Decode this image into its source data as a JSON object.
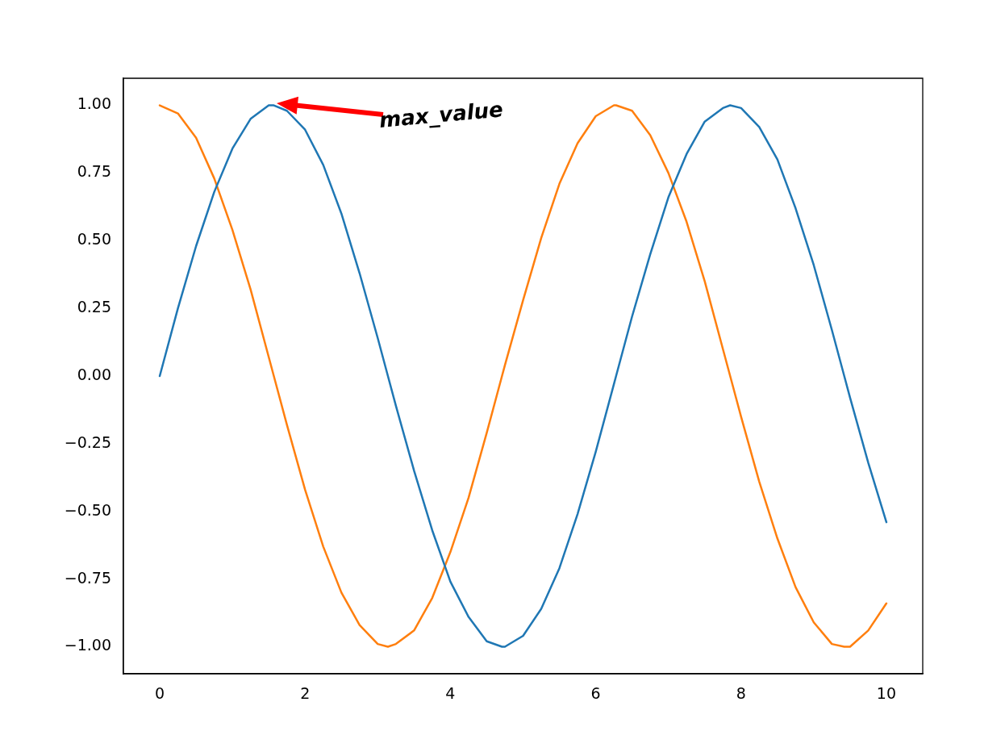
{
  "chart_data": {
    "type": "line",
    "x": [
      0,
      0.25,
      0.5,
      0.75,
      1,
      1.25,
      1.5,
      1.57,
      1.75,
      2,
      2.25,
      2.5,
      2.75,
      3,
      3.14,
      3.25,
      3.5,
      3.75,
      4,
      4.25,
      4.5,
      4.71,
      4.75,
      5,
      5.25,
      5.5,
      5.75,
      6,
      6.25,
      6.28,
      6.5,
      6.75,
      7,
      7.25,
      7.5,
      7.75,
      7.85,
      8,
      8.25,
      8.5,
      8.75,
      9,
      9.25,
      9.42,
      9.5,
      9.75,
      10
    ],
    "series": [
      {
        "color": "#1f77b4",
        "values": [
          0,
          0.25,
          0.48,
          0.68,
          0.84,
          0.95,
          1.0,
          1.0,
          0.98,
          0.91,
          0.78,
          0.6,
          0.38,
          0.14,
          0.0,
          -0.11,
          -0.35,
          -0.57,
          -0.76,
          -0.89,
          -0.98,
          -1.0,
          -1.0,
          -0.96,
          -0.86,
          -0.71,
          -0.51,
          -0.28,
          -0.03,
          0.0,
          0.22,
          0.45,
          0.66,
          0.82,
          0.94,
          0.99,
          1.0,
          0.99,
          0.92,
          0.8,
          0.62,
          0.41,
          0.17,
          0.0,
          -0.08,
          -0.32,
          -0.54
        ]
      },
      {
        "color": "#ff7f0e",
        "values": [
          1,
          0.97,
          0.88,
          0.73,
          0.54,
          0.32,
          0.07,
          0.0,
          -0.18,
          -0.42,
          -0.63,
          -0.8,
          -0.92,
          -0.99,
          -1.0,
          -0.99,
          -0.94,
          -0.82,
          -0.65,
          -0.45,
          -0.21,
          0.0,
          0.04,
          0.28,
          0.51,
          0.71,
          0.86,
          0.96,
          1.0,
          1.0,
          0.98,
          0.89,
          0.75,
          0.57,
          0.35,
          0.1,
          0.0,
          -0.15,
          -0.39,
          -0.6,
          -0.78,
          -0.91,
          -0.99,
          -1.0,
          -1.0,
          -0.94,
          -0.84
        ]
      }
    ],
    "xlim": [
      -0.5,
      10.5
    ],
    "xticks": [
      0,
      2,
      4,
      6,
      8,
      10
    ],
    "ylim": [
      -1.1,
      1.1
    ],
    "yticks": [
      {
        "value": -1,
        "label": "−1.00"
      },
      {
        "value": -0.75,
        "label": "−0.75"
      },
      {
        "value": -0.5,
        "label": "−0.50"
      },
      {
        "value": -0.25,
        "label": "−0.25"
      },
      {
        "value": 0,
        "label": "0.00"
      },
      {
        "value": 0.25,
        "label": "0.25"
      },
      {
        "value": 0.5,
        "label": "0.50"
      },
      {
        "value": 0.75,
        "label": "0.75"
      },
      {
        "value": 1,
        "label": "1.00"
      }
    ],
    "grid": false,
    "legend": false,
    "marker": "none",
    "line_style": "solid",
    "annotations": [
      "max_value"
    ]
  }
}
